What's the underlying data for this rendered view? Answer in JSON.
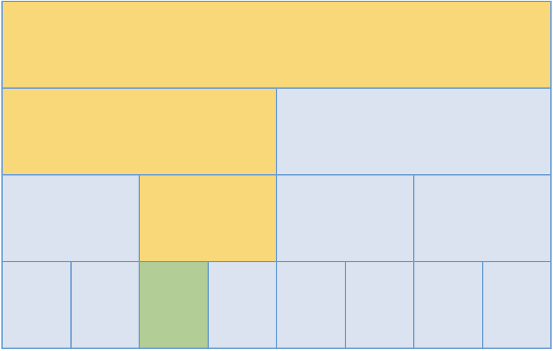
{
  "colors": {
    "border": "#6e9fd2",
    "default": "#dce3f0",
    "highlight": "#f8d878",
    "selected": "#b2cd96"
  },
  "rows": [
    {
      "cells": [
        {
          "state": "highlight"
        }
      ]
    },
    {
      "cells": [
        {
          "state": "highlight"
        },
        {
          "state": "default"
        }
      ]
    },
    {
      "cells": [
        {
          "state": "default"
        },
        {
          "state": "highlight"
        },
        {
          "state": "default"
        },
        {
          "state": "default"
        }
      ]
    },
    {
      "cells": [
        {
          "state": "default"
        },
        {
          "state": "default"
        },
        {
          "state": "selected"
        },
        {
          "state": "default"
        },
        {
          "state": "default"
        },
        {
          "state": "default"
        },
        {
          "state": "default"
        },
        {
          "state": "default"
        }
      ]
    }
  ]
}
